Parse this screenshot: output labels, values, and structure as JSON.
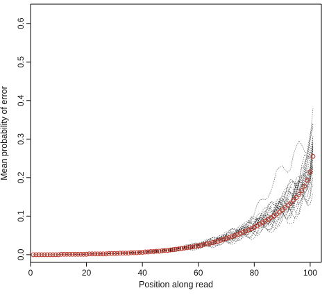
{
  "chart_data": {
    "type": "scatter",
    "title": "",
    "xlabel": "Position along read",
    "ylabel": "Mean probability of error",
    "xlim": [
      0,
      104
    ],
    "ylim": [
      -0.02,
      0.65
    ],
    "x_ticks": [
      "0",
      "20",
      "40",
      "60",
      "80",
      "100"
    ],
    "y_ticks": [
      "0.0",
      "0.1",
      "0.2",
      "0.3",
      "0.4",
      "0.5",
      "0.6"
    ],
    "grid": false,
    "legend": "none",
    "colors": {
      "mean_points": "#c0392b",
      "individual_runs": "#222222",
      "axes": "#000000"
    },
    "series": [
      {
        "style": "red open circles",
        "x": [
          1,
          2,
          3,
          4,
          5,
          6,
          7,
          8,
          9,
          10,
          11,
          12,
          13,
          14,
          15,
          16,
          17,
          18,
          19,
          20,
          21,
          22,
          23,
          24,
          25,
          26,
          27,
          28,
          29,
          30,
          31,
          32,
          33,
          34,
          35,
          36,
          37,
          38,
          39,
          40,
          41,
          42,
          43,
          44,
          45,
          46,
          47,
          48,
          49,
          50,
          51,
          52,
          53,
          54,
          55,
          56,
          57,
          58,
          59,
          60,
          61,
          62,
          63,
          64,
          65,
          66,
          67,
          68,
          69,
          70,
          71,
          72,
          73,
          74,
          75,
          76,
          77,
          78,
          79,
          80,
          81,
          82,
          83,
          84,
          85,
          86,
          87,
          88,
          89,
          90,
          91,
          92,
          93,
          94,
          95,
          96,
          97,
          98,
          99,
          100,
          101
        ],
        "y": [
          0.0,
          0.0,
          0.0,
          0.0,
          0.0,
          0.0,
          0.0,
          0.0,
          0.0,
          0.0,
          0.001,
          0.001,
          0.001,
          0.001,
          0.001,
          0.001,
          0.001,
          0.001,
          0.001,
          0.001,
          0.002,
          0.002,
          0.002,
          0.002,
          0.002,
          0.002,
          0.002,
          0.003,
          0.003,
          0.003,
          0.003,
          0.004,
          0.004,
          0.004,
          0.004,
          0.005,
          0.005,
          0.005,
          0.006,
          0.006,
          0.007,
          0.007,
          0.008,
          0.008,
          0.009,
          0.009,
          0.01,
          0.011,
          0.011,
          0.012,
          0.013,
          0.014,
          0.015,
          0.016,
          0.017,
          0.018,
          0.019,
          0.02,
          0.022,
          0.023,
          0.024,
          0.026,
          0.028,
          0.029,
          0.031,
          0.033,
          0.035,
          0.037,
          0.039,
          0.042,
          0.044,
          0.047,
          0.049,
          0.052,
          0.055,
          0.058,
          0.061,
          0.064,
          0.068,
          0.071,
          0.075,
          0.079,
          0.083,
          0.087,
          0.091,
          0.096,
          0.1,
          0.105,
          0.11,
          0.116,
          0.122,
          0.128,
          0.134,
          0.141,
          0.148,
          0.156,
          0.166,
          0.178,
          0.193,
          0.215,
          0.255
        ]
      }
    ],
    "individual_runs_count": 24
  }
}
